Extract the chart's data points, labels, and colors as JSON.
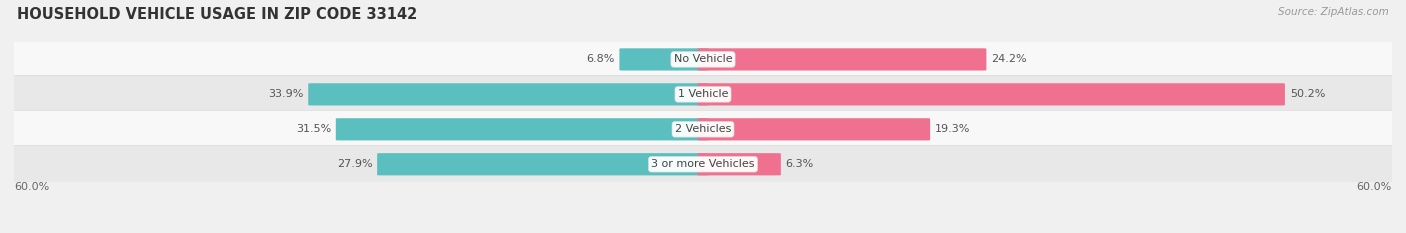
{
  "title": "HOUSEHOLD VEHICLE USAGE IN ZIP CODE 33142",
  "source": "Source: ZipAtlas.com",
  "categories": [
    "No Vehicle",
    "1 Vehicle",
    "2 Vehicles",
    "3 or more Vehicles"
  ],
  "owner_values": [
    6.8,
    33.9,
    31.5,
    27.9
  ],
  "renter_values": [
    24.2,
    50.2,
    19.3,
    6.3
  ],
  "owner_color": "#5BBFBF",
  "renter_color": "#F07090",
  "axis_max": 60.0,
  "axis_label_left": "60.0%",
  "axis_label_right": "60.0%",
  "bg_color": "#f0f0f0",
  "row_bg_light": "#f8f8f8",
  "row_bg_dark": "#e8e8e8",
  "bar_height": 0.62,
  "title_fontsize": 10.5,
  "label_fontsize": 8,
  "value_fontsize": 8,
  "tick_fontsize": 8,
  "legend_fontsize": 8,
  "source_fontsize": 7.5
}
